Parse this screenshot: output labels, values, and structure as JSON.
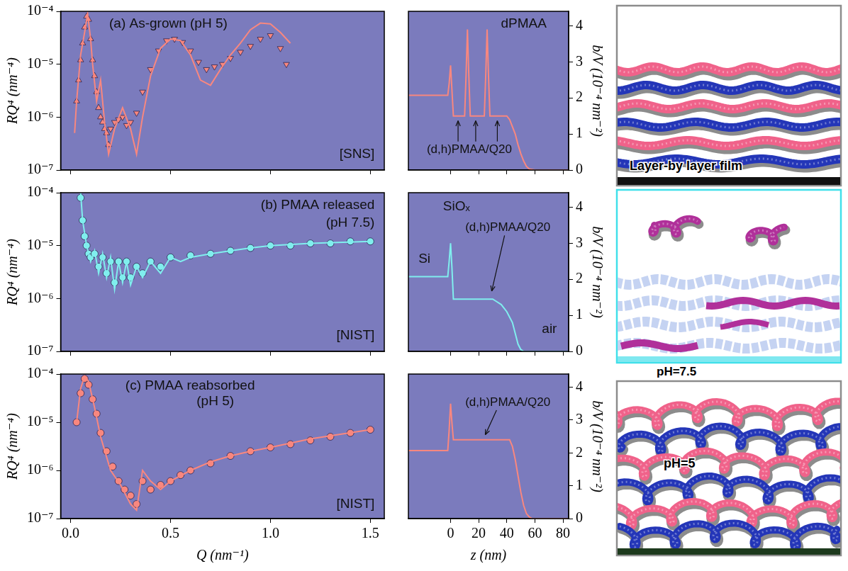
{
  "chart_data": [
    {
      "type": "scatter",
      "y_label": "RQ⁴ (nm⁻⁴)",
      "log": "y",
      "grid": false,
      "tick_labels": "y",
      "annotations": [
        "(a) As-grown (pH 5)",
        "[SNS]"
      ],
      "xlim": [
        -0.05,
        1.57
      ],
      "xticks": [
        {
          "value": 0,
          "label": "0.0"
        },
        0.5,
        {
          "value": 1,
          "label": "1.0"
        },
        1.5
      ],
      "ylim": [
        1e-07,
        0.0001
      ],
      "yticks": [
        {
          "value": 1e-07,
          "label": "10⁻⁷"
        },
        {
          "value": 1e-06,
          "label": "10⁻⁶"
        },
        {
          "value": 1e-05,
          "label": "10⁻⁵"
        },
        {
          "value": 0.0001,
          "label": "10⁻⁴"
        }
      ],
      "series": [
        {
          "type": "scatter",
          "marker": "triangle",
          "color": "#f8877f",
          "x": [
            0.03,
            0.04,
            0.05,
            0.06,
            0.07,
            0.08,
            0.09,
            0.1,
            0.11,
            0.12,
            0.13,
            0.14,
            0.15,
            0.16,
            0.17,
            0.18,
            0.19
          ],
          "values": [
            2e-06,
            5e-06,
            1.2e-05,
            2.5e-05,
            5e-05,
            8e-05,
            7e-05,
            3e-05,
            1.2e-05,
            6e-06,
            3e-06,
            1.5e-06,
            1e-06,
            8e-07,
            6e-07,
            5e-07,
            3e-07
          ]
        },
        {
          "type": "scatter",
          "marker": "triangle_down",
          "color": "#f8877f",
          "x": [
            0.2,
            0.22,
            0.24,
            0.26,
            0.28,
            0.3,
            0.33,
            0.36,
            0.4,
            0.44,
            0.48,
            0.52,
            0.56,
            0.6,
            0.64,
            0.68,
            0.72,
            0.76,
            0.8,
            0.85,
            0.9,
            0.95,
            1.0,
            1.05,
            1.08
          ],
          "values": [
            6e-07,
            8e-07,
            9e-07,
            1e-06,
            7e-07,
            8e-07,
            1.2e-06,
            3e-06,
            8e-06,
            1.8e-05,
            2.8e-05,
            3e-05,
            2.6e-05,
            1.8e-05,
            1.1e-05,
            8e-06,
            9e-06,
            1e-05,
            1.3e-05,
            1.7e-05,
            2.2e-05,
            3e-05,
            3.5e-05,
            2e-05,
            1e-05
          ]
        },
        {
          "type": "line",
          "line_style": "solid",
          "color": "#f8877f",
          "x": [
            0.02,
            0.03,
            0.05,
            0.07,
            0.085,
            0.1,
            0.11,
            0.13,
            0.15,
            0.17,
            0.19,
            0.22,
            0.26,
            0.3,
            0.33,
            0.36,
            0.4,
            0.45,
            0.5,
            0.55,
            0.6,
            0.65,
            0.7,
            0.75,
            0.8,
            0.85,
            0.9,
            0.95,
            1.0,
            1.05,
            1.1
          ],
          "values": [
            5e-07,
            2e-06,
            1.5e-05,
            4e-05,
            9e-05,
            3e-05,
            1e-05,
            2e-06,
            5e-06,
            8e-07,
            2e-07,
            6e-07,
            1.5e-06,
            6e-07,
            2e-07,
            1e-06,
            6e-06,
            2e-05,
            3e-05,
            2.8e-05,
            1.5e-05,
            5e-06,
            4e-06,
            8e-06,
            1.5e-05,
            2.5e-05,
            4.5e-05,
            6e-05,
            5.8e-05,
            4e-05,
            2.5e-05
          ]
        }
      ]
    },
    {
      "type": "scatter",
      "y_label": "RQ⁴ (nm⁻⁴)",
      "log": "y",
      "grid": false,
      "tick_labels": "y",
      "annotations": [
        "(b) PMAA released",
        "(pH 7.5)",
        "[NIST]"
      ],
      "xlim": [
        -0.05,
        1.57
      ],
      "xticks": [
        {
          "value": 0,
          "label": "0.0"
        },
        0.5,
        {
          "value": 1,
          "label": "1.0"
        },
        1.5
      ],
      "ylim": [
        1e-07,
        0.0001
      ],
      "yticks": [
        {
          "value": 1e-07,
          "label": "10⁻⁷"
        },
        {
          "value": 1e-06,
          "label": "10⁻⁶"
        },
        {
          "value": 1e-05,
          "label": "10⁻⁵"
        },
        {
          "value": 0.0001,
          "label": "10⁻⁴"
        }
      ],
      "series": [
        {
          "type": "scatter",
          "marker": "circle",
          "color": "#80eeee",
          "x": [
            0.05,
            0.06,
            0.07,
            0.08,
            0.09,
            0.1,
            0.12,
            0.14,
            0.16,
            0.18,
            0.2,
            0.22,
            0.24,
            0.26,
            0.28,
            0.3,
            0.33,
            0.36,
            0.4,
            0.45,
            0.5,
            0.6,
            0.7,
            0.8,
            0.9,
            1.0,
            1.1,
            1.2,
            1.3,
            1.4,
            1.5
          ],
          "values": [
            8e-05,
            3e-05,
            1.5e-05,
            1e-05,
            7e-06,
            6e-06,
            7e-06,
            4e-06,
            6e-06,
            3e-06,
            5e-06,
            2e-06,
            5e-06,
            2.5e-06,
            5e-06,
            2.5e-06,
            4e-06,
            3e-06,
            5e-06,
            4e-06,
            6e-06,
            6.5e-06,
            7e-06,
            8e-06,
            9e-06,
            1e-05,
            1e-05,
            1.1e-05,
            1.1e-05,
            1.2e-05,
            1.2e-05
          ]
        },
        {
          "type": "line",
          "line_style": "solid",
          "color": "#80eeee",
          "x": [
            0.05,
            0.06,
            0.08,
            0.1,
            0.12,
            0.14,
            0.16,
            0.18,
            0.2,
            0.22,
            0.24,
            0.26,
            0.28,
            0.3,
            0.33,
            0.36,
            0.4,
            0.45,
            0.5,
            0.55,
            0.6,
            0.7,
            0.8,
            0.9,
            1.0,
            1.2,
            1.5
          ],
          "values": [
            0.0001,
            3e-05,
            1e-05,
            5e-06,
            8e-06,
            3e-06,
            7e-06,
            2.5e-06,
            6e-06,
            1.5e-06,
            5e-06,
            2e-06,
            5e-06,
            1.8e-06,
            4e-06,
            2.5e-06,
            5e-06,
            3e-06,
            6e-06,
            5e-06,
            6e-06,
            7e-06,
            8e-06,
            9e-06,
            1e-05,
            1.1e-05,
            1.2e-05
          ]
        }
      ]
    },
    {
      "type": "scatter",
      "x_label": "Q (nm⁻¹)",
      "y_label": "RQ⁴ (nm⁻⁴)",
      "log": "y",
      "grid": false,
      "annotations": [
        "(c) PMAA reabsorbed",
        "(pH 5)",
        "[NIST]"
      ],
      "xlim": [
        -0.05,
        1.57
      ],
      "xticks": [
        {
          "value": 0,
          "label": "0.0"
        },
        0.5,
        {
          "value": 1,
          "label": "1.0"
        },
        1.5
      ],
      "ylim": [
        1e-07,
        0.0001
      ],
      "yticks": [
        {
          "value": 1e-07,
          "label": "10⁻⁷"
        },
        {
          "value": 1e-06,
          "label": "10⁻⁶"
        },
        {
          "value": 1e-05,
          "label": "10⁻⁵"
        },
        {
          "value": 0.0001,
          "label": "10⁻⁴"
        }
      ],
      "series": [
        {
          "type": "scatter",
          "marker": "circle",
          "color": "#f8877f",
          "x": [
            0.03,
            0.05,
            0.07,
            0.09,
            0.11,
            0.13,
            0.15,
            0.18,
            0.21,
            0.24,
            0.27,
            0.3,
            0.33,
            0.36,
            0.4,
            0.45,
            0.5,
            0.55,
            0.6,
            0.7,
            0.8,
            0.9,
            1.0,
            1.1,
            1.2,
            1.3,
            1.4,
            1.5
          ],
          "values": [
            1e-05,
            4e-05,
            8e-05,
            6e-05,
            3e-05,
            1.5e-05,
            6e-06,
            2.5e-06,
            1.2e-06,
            6e-07,
            4e-07,
            3e-07,
            2e-07,
            6e-07,
            4e-07,
            5e-07,
            6e-07,
            8e-07,
            1e-06,
            1.4e-06,
            2e-06,
            2.5e-06,
            3e-06,
            3.5e-06,
            4.2e-06,
            5e-06,
            6e-06,
            7e-06
          ]
        },
        {
          "type": "line",
          "line_style": "solid",
          "color": "#f8877f",
          "x": [
            0.03,
            0.05,
            0.07,
            0.09,
            0.12,
            0.15,
            0.2,
            0.25,
            0.3,
            0.33,
            0.36,
            0.4,
            0.45,
            0.5,
            0.6,
            0.7,
            0.8,
            0.9,
            1.0,
            1.2,
            1.5
          ],
          "values": [
            1e-05,
            5e-05,
            9e-05,
            7e-05,
            2e-05,
            5e-06,
            1e-06,
            5e-07,
            2e-07,
            1.5e-07,
            1e-06,
            6e-07,
            4e-07,
            6e-07,
            1e-06,
            1.5e-06,
            2e-06,
            2.5e-06,
            3e-06,
            4.5e-06,
            7e-06
          ]
        }
      ]
    },
    {
      "type": "line",
      "y2_label": "b/V (10⁻⁴ nm⁻²)",
      "grid": false,
      "tick_labels": "y",
      "annotations": [
        "dPMAA",
        "(d,h)PMAA/Q20"
      ],
      "xlim": [
        -30,
        84
      ],
      "xticks": [
        0,
        20,
        40,
        60,
        80
      ],
      "y2lim": [
        0,
        4.4
      ],
      "y2ticks": [
        0,
        1,
        2,
        3,
        4
      ],
      "series": [
        {
          "axis": "y2",
          "line_style": "solid",
          "color": "#f8877f",
          "x": [
            -30,
            -2,
            -1,
            0,
            1,
            2,
            4,
            10,
            11,
            12,
            13,
            14,
            24,
            25,
            26,
            27,
            28,
            40,
            42,
            44,
            46,
            48,
            50,
            52,
            54,
            56,
            60,
            84
          ],
          "values": [
            2.07,
            2.07,
            2.4,
            2.9,
            2.2,
            1.5,
            1.5,
            1.5,
            2.6,
            3.9,
            2.6,
            1.5,
            1.5,
            2.6,
            3.9,
            2.6,
            1.5,
            1.5,
            1.4,
            1.2,
            1.0,
            0.7,
            0.45,
            0.25,
            0.1,
            0.03,
            0,
            0
          ]
        }
      ]
    },
    {
      "type": "line",
      "y2_label": "b/V (10⁻⁴ nm⁻²)",
      "grid": false,
      "tick_labels": "y",
      "annotations": [
        "SiOₓ",
        "Si",
        "(d,h)PMAA/Q20",
        "air"
      ],
      "xlim": [
        -30,
        84
      ],
      "xticks": [
        0,
        20,
        40,
        60,
        80
      ],
      "y2lim": [
        0,
        4.4
      ],
      "y2ticks": [
        0,
        1,
        2,
        3,
        4
      ],
      "series": [
        {
          "axis": "y2",
          "line_style": "solid",
          "color": "#80eeee",
          "x": [
            -30,
            -2,
            -1,
            0,
            1,
            2,
            4,
            30,
            32,
            36,
            40,
            44,
            46,
            48,
            50,
            52,
            84
          ],
          "values": [
            2.07,
            2.07,
            2.5,
            3.0,
            2.3,
            1.45,
            1.45,
            1.45,
            1.4,
            1.3,
            1.1,
            0.8,
            0.5,
            0.2,
            0.05,
            0,
            0
          ]
        }
      ]
    },
    {
      "type": "line",
      "x_label": "z (nm)",
      "y2_label": "b/V (10⁻⁴ nm⁻²)",
      "grid": false,
      "annotations": [
        "(d,h)PMAA/Q20"
      ],
      "xlim": [
        -30,
        84
      ],
      "xticks": [
        0,
        20,
        40,
        60,
        80
      ],
      "y2lim": [
        0,
        4.4
      ],
      "y2ticks": [
        0,
        1,
        2,
        3,
        4
      ],
      "series": [
        {
          "axis": "y2",
          "line_style": "solid",
          "color": "#f8877f",
          "x": [
            -30,
            -2,
            -1,
            0,
            1,
            2,
            4,
            42,
            44,
            46,
            48,
            50,
            52,
            54,
            56,
            58,
            84
          ],
          "values": [
            2.07,
            2.07,
            2.7,
            3.5,
            2.9,
            2.4,
            2.4,
            2.4,
            2.2,
            1.8,
            1.3,
            0.8,
            0.4,
            0.15,
            0.05,
            0,
            0
          ]
        }
      ]
    }
  ],
  "diagram": {
    "panels": [
      {
        "text": "Layer-by layer film"
      },
      {
        "text": "pH=7.5"
      },
      {
        "text": "pH=5"
      }
    ]
  }
}
